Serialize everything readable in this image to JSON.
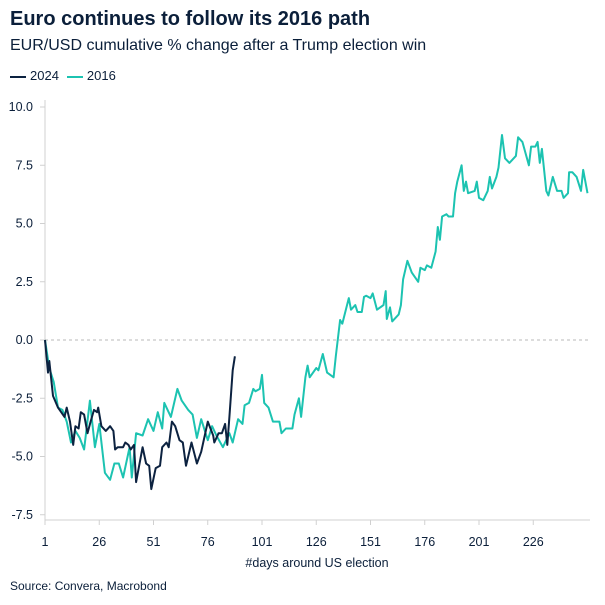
{
  "chart_data": {
    "type": "line",
    "title": "Euro continues to follow its 2016 path",
    "subtitle": "EUR/USD cumulative % change after a Trump election win",
    "xlabel": "#days around US election",
    "ylabel": "",
    "source": "Source: Convera, Macrobond",
    "xlim": [
      1,
      251
    ],
    "ylim": [
      -7.9,
      10.2
    ],
    "x_ticks": [
      1,
      26,
      51,
      76,
      101,
      126,
      151,
      176,
      201,
      226
    ],
    "y_ticks": [
      10.0,
      7.5,
      5.0,
      2.5,
      0.0,
      -2.5,
      -5.0,
      -7.5
    ],
    "y_tick_labels": [
      "10.0",
      "7.5",
      "5.0",
      "2.5",
      "0.0",
      "-2.5",
      "-5.0",
      "-7.5"
    ],
    "zero_line": "dashed",
    "grid": false,
    "legend_position": "top-left",
    "series": [
      {
        "name": "2024",
        "color": "#0c2240",
        "points": [
          [
            1,
            0
          ],
          [
            2.4,
            -1.4
          ],
          [
            3,
            -0.9
          ],
          [
            4.7,
            -2.4
          ],
          [
            7,
            -2.9
          ],
          [
            10,
            -3.3
          ],
          [
            11,
            -2.9
          ],
          [
            12.5,
            -3.5
          ],
          [
            14,
            -4.5
          ],
          [
            15,
            -3.7
          ],
          [
            16.5,
            -3.8
          ],
          [
            17.5,
            -3.1
          ],
          [
            19,
            -3.2
          ],
          [
            20.6,
            -4.0
          ],
          [
            22,
            -3.5
          ],
          [
            23.6,
            -3.0
          ],
          [
            25,
            -3.1
          ],
          [
            25.5,
            -2.9
          ],
          [
            27,
            -3.7
          ],
          [
            29,
            -3.9
          ],
          [
            31,
            -3.7
          ],
          [
            32.5,
            -3.9
          ],
          [
            33.3,
            -4.7
          ],
          [
            34.5,
            -4.6
          ],
          [
            37,
            -4.6
          ],
          [
            38,
            -4.4
          ],
          [
            39.5,
            -4.5
          ],
          [
            40.5,
            -4.7
          ],
          [
            42,
            -4.5
          ],
          [
            43,
            -6.1
          ],
          [
            46,
            -4.6
          ],
          [
            47.6,
            -5.3
          ],
          [
            49,
            -5.4
          ],
          [
            50,
            -6.4
          ],
          [
            52,
            -5.5
          ],
          [
            54,
            -5.4
          ],
          [
            55,
            -4.6
          ],
          [
            57,
            -4.4
          ],
          [
            58,
            -4.6
          ],
          [
            59.5,
            -3.5
          ],
          [
            61,
            -3.7
          ],
          [
            63,
            -4.3
          ],
          [
            64.5,
            -4.4
          ],
          [
            66,
            -5.4
          ],
          [
            68.5,
            -4.4
          ],
          [
            71,
            -5.3
          ],
          [
            73,
            -4.8
          ],
          [
            76,
            -3.5
          ],
          [
            78.5,
            -4.1
          ],
          [
            79,
            -4.4
          ],
          [
            81,
            -4.0
          ],
          [
            82.5,
            -4.0
          ],
          [
            84,
            -3.6
          ],
          [
            85,
            -4.5
          ],
          [
            86,
            -3.3
          ],
          [
            87.5,
            -1.3
          ],
          [
            88.5,
            -0.7
          ]
        ]
      },
      {
        "name": "2016",
        "color": "#1cc3b1",
        "points": [
          [
            1,
            0
          ],
          [
            3,
            -1.2
          ],
          [
            5,
            -1.8
          ],
          [
            7,
            -2.9
          ],
          [
            9,
            -3.0
          ],
          [
            11,
            -3.5
          ],
          [
            13,
            -4.4
          ],
          [
            15,
            -3.9
          ],
          [
            17,
            -4.2
          ],
          [
            19,
            -4.7
          ],
          [
            21.7,
            -2.6
          ],
          [
            24,
            -4.6
          ],
          [
            26,
            -3.6
          ],
          [
            28.6,
            -5.7
          ],
          [
            31,
            -6.0
          ],
          [
            33,
            -5.3
          ],
          [
            35,
            -5.3
          ],
          [
            37,
            -5.9
          ],
          [
            40,
            -4.6
          ],
          [
            41,
            -5.9
          ],
          [
            43,
            -4.0
          ],
          [
            46,
            -4.1
          ],
          [
            48.5,
            -3.4
          ],
          [
            51,
            -3.9
          ],
          [
            53,
            -3.1
          ],
          [
            55,
            -3.8
          ],
          [
            56,
            -2.7
          ],
          [
            59,
            -3.3
          ],
          [
            62,
            -2.1
          ],
          [
            64,
            -2.6
          ],
          [
            67,
            -3.0
          ],
          [
            69,
            -3.2
          ],
          [
            71,
            -4.2
          ],
          [
            73,
            -3.4
          ],
          [
            76,
            -4.3
          ],
          [
            78,
            -3.7
          ],
          [
            80,
            -4.1
          ],
          [
            83,
            -4.6
          ],
          [
            86,
            -4.0
          ],
          [
            87.5,
            -4.4
          ],
          [
            90,
            -3.4
          ],
          [
            92,
            -3.6
          ],
          [
            93,
            -2.8
          ],
          [
            95,
            -2.7
          ],
          [
            97,
            -2.1
          ],
          [
            98,
            -2.2
          ],
          [
            100,
            -2.1
          ],
          [
            101,
            -1.5
          ],
          [
            102,
            -2.7
          ],
          [
            104,
            -2.9
          ],
          [
            106,
            -3.5
          ],
          [
            109,
            -3.5
          ],
          [
            110,
            -4.0
          ],
          [
            112,
            -3.8
          ],
          [
            115,
            -3.8
          ],
          [
            116,
            -3.2
          ],
          [
            118,
            -2.5
          ],
          [
            119,
            -3.3
          ],
          [
            121,
            -1.6
          ],
          [
            122,
            -1.1
          ],
          [
            123,
            -1.6
          ],
          [
            126,
            -1.2
          ],
          [
            127,
            -1.3
          ],
          [
            129,
            -0.6
          ],
          [
            131,
            -1.4
          ],
          [
            134,
            -1.6
          ],
          [
            135,
            -0.7
          ],
          [
            137,
            0.86
          ],
          [
            138,
            0.7
          ],
          [
            141,
            1.8
          ],
          [
            142,
            1.3
          ],
          [
            144,
            1.5
          ],
          [
            145,
            1.2
          ],
          [
            147,
            1.2
          ],
          [
            148,
            1.85
          ],
          [
            149,
            1.9
          ],
          [
            151,
            1.8
          ],
          [
            152,
            2.0
          ],
          [
            154,
            1.3
          ],
          [
            157,
            1.5
          ],
          [
            158,
            2.1
          ],
          [
            158.5,
            0.9
          ],
          [
            160,
            1.4
          ],
          [
            161,
            0.8
          ],
          [
            164,
            1.1
          ],
          [
            165,
            1.5
          ],
          [
            166,
            2.6
          ],
          [
            168,
            3.4
          ],
          [
            170,
            2.9
          ],
          [
            173,
            2.5
          ],
          [
            174,
            3.1
          ],
          [
            176,
            3.0
          ],
          [
            177,
            3.2
          ],
          [
            179,
            3.1
          ],
          [
            181,
            3.8
          ],
          [
            182,
            4.85
          ],
          [
            183,
            4.3
          ],
          [
            184,
            5.3
          ],
          [
            186,
            5.4
          ],
          [
            187,
            5.3
          ],
          [
            189,
            5.3
          ],
          [
            190,
            6.3
          ],
          [
            191,
            6.8
          ],
          [
            193,
            7.5
          ],
          [
            194,
            6.4
          ],
          [
            195,
            6.8
          ],
          [
            196,
            6.3
          ],
          [
            199,
            6.4
          ],
          [
            200,
            6.8
          ],
          [
            201,
            6.1
          ],
          [
            203,
            6.0
          ],
          [
            205,
            6.4
          ],
          [
            206,
            7.0
          ],
          [
            207,
            6.5
          ],
          [
            209,
            7.0
          ],
          [
            210,
            7.4
          ],
          [
            211.6,
            8.8
          ],
          [
            213,
            7.8
          ],
          [
            215,
            7.6
          ],
          [
            217,
            7.8
          ],
          [
            218,
            7.9
          ],
          [
            219,
            8.7
          ],
          [
            221,
            8.5
          ],
          [
            224,
            7.5
          ],
          [
            225,
            8.3
          ],
          [
            227,
            8.3
          ],
          [
            228,
            8.5
          ],
          [
            229,
            7.6
          ],
          [
            230,
            8.2
          ],
          [
            232,
            6.4
          ],
          [
            233,
            6.2
          ],
          [
            235,
            7.0
          ],
          [
            237,
            6.4
          ],
          [
            239,
            6.4
          ],
          [
            240,
            6.1
          ],
          [
            242,
            6.3
          ],
          [
            242.5,
            7.2
          ],
          [
            244,
            7.2
          ],
          [
            246,
            7.0
          ],
          [
            248,
            6.4
          ],
          [
            249,
            7.3
          ],
          [
            251,
            6.3
          ]
        ]
      }
    ]
  }
}
